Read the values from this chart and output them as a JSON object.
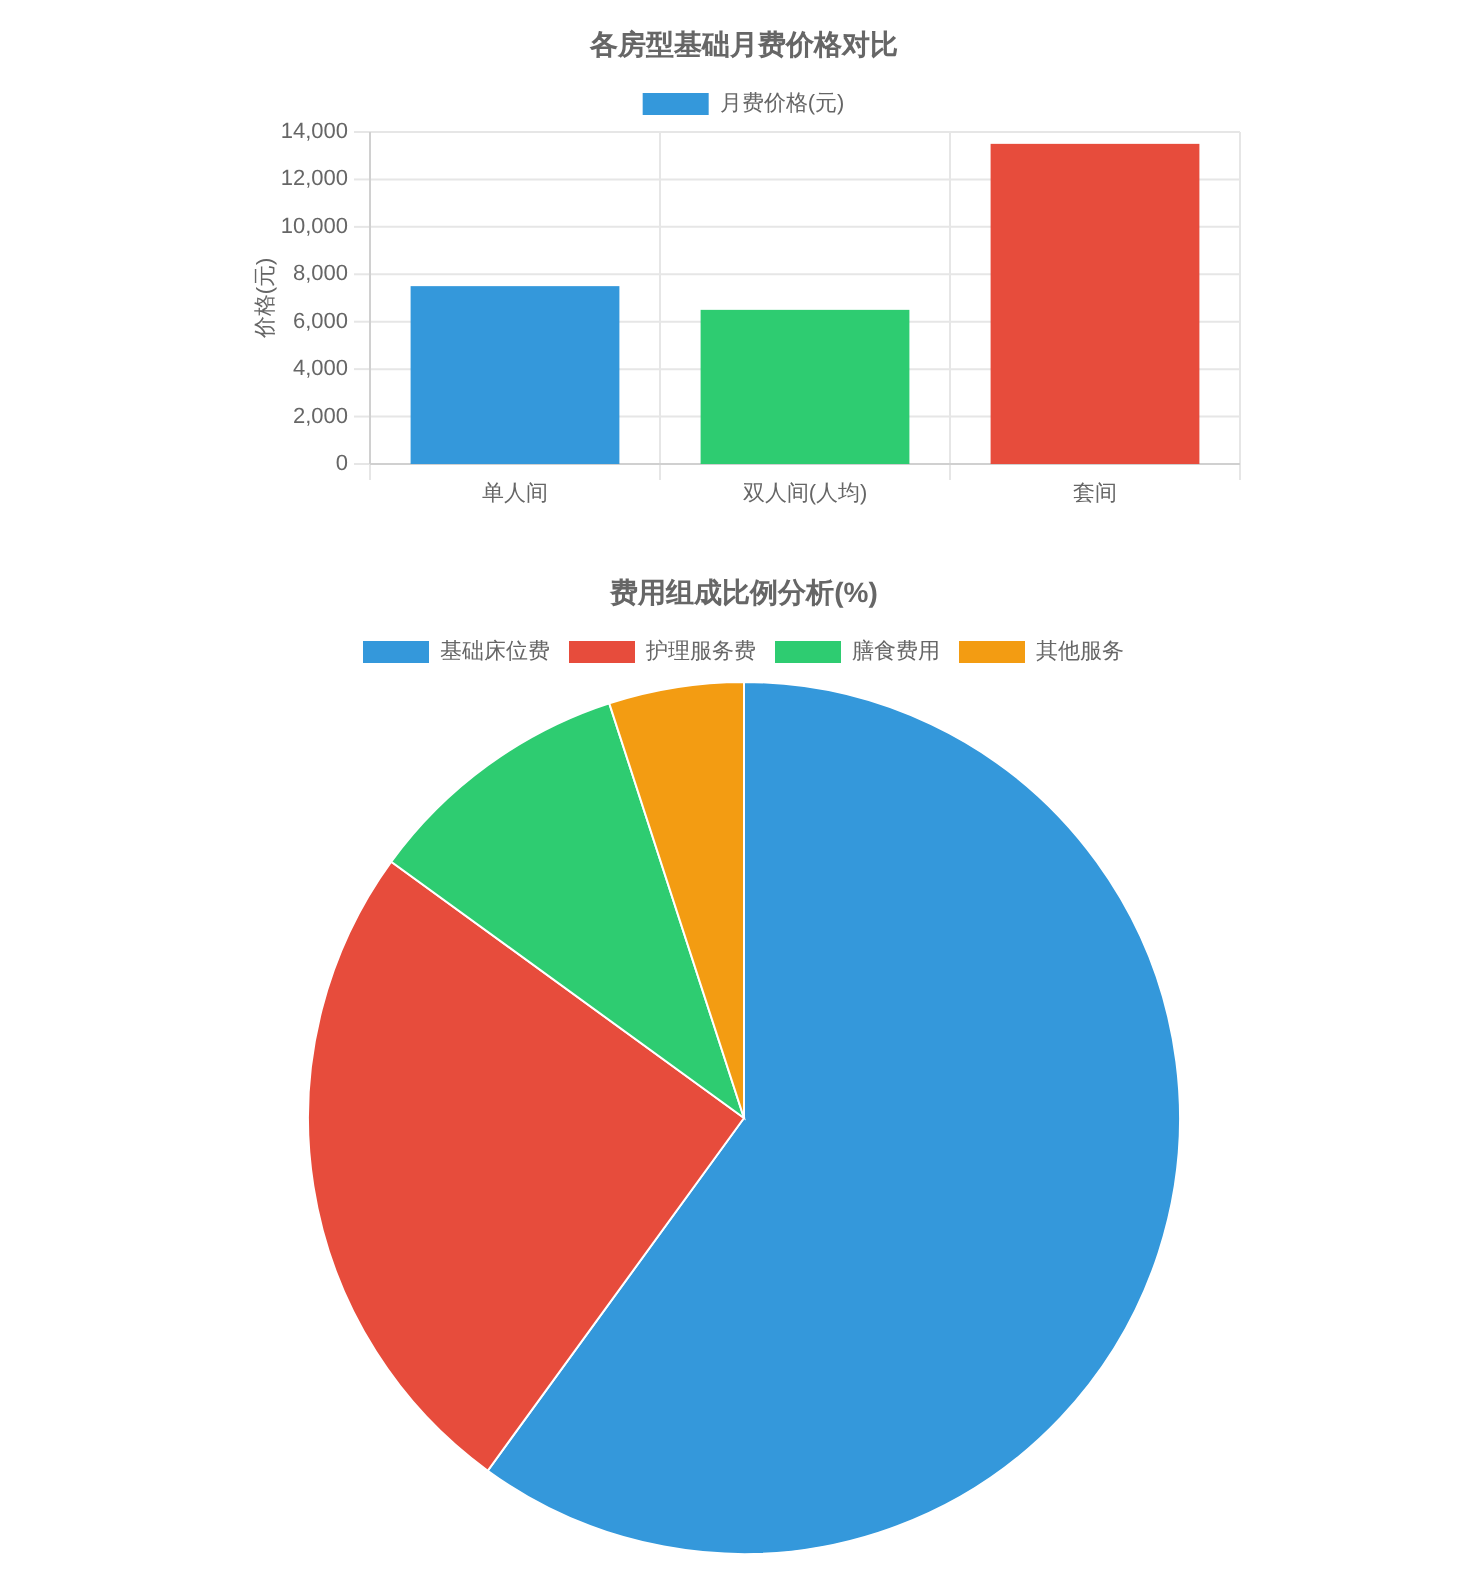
{
  "chart_data": [
    {
      "type": "bar",
      "title": "各房型基础月费价格对比",
      "ylabel": "价格(元)",
      "categories": [
        "单人间",
        "双人间(人均)",
        "套间"
      ],
      "series": [
        {
          "name": "月费价格(元)",
          "colors": [
            "#3498db",
            "#2ecc71",
            "#e74c3c"
          ],
          "values": [
            7500,
            6500,
            13500
          ]
        }
      ],
      "ylim": [
        0,
        14000
      ],
      "yticks": [
        0,
        {
          "value": 2000,
          "label": "2,000"
        },
        {
          "value": 4000,
          "label": "4,000"
        },
        {
          "value": 6000,
          "label": "6,000"
        },
        {
          "value": 8000,
          "label": "8,000"
        },
        {
          "value": 10000,
          "label": "10,000"
        },
        {
          "value": 12000,
          "label": "12,000"
        },
        {
          "value": 14000,
          "label": "14,000"
        }
      ],
      "grid": true,
      "legend": "top"
    },
    {
      "type": "pie",
      "title": "费用组成比例分析(%)",
      "categories": [
        "基础床位费",
        "护理服务费",
        "膳食费用",
        "其他服务"
      ],
      "values": [
        60,
        25,
        10,
        5
      ],
      "colors": [
        "#3498db",
        "#e74c3c",
        "#2ecc71",
        "#f39c12"
      ],
      "legend": "top"
    }
  ]
}
